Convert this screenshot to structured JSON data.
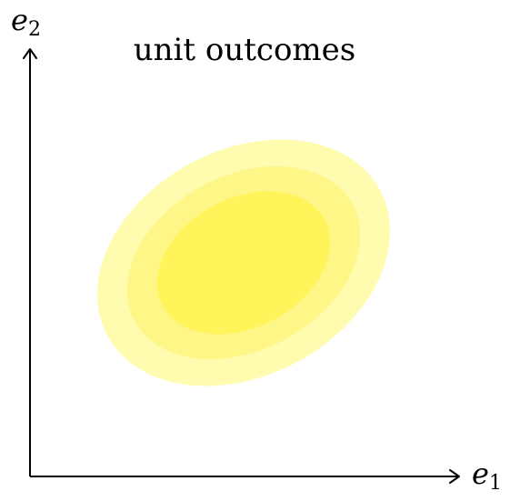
{
  "title": "unit outcomes",
  "axes": {
    "x": {
      "base": "e",
      "subscript": "1"
    },
    "y": {
      "base": "e",
      "subscript": "2"
    }
  },
  "colors": {
    "outer": "#fffcb0",
    "middle": "#fff688",
    "inner": "#fff55a",
    "axis": "#000000"
  }
}
